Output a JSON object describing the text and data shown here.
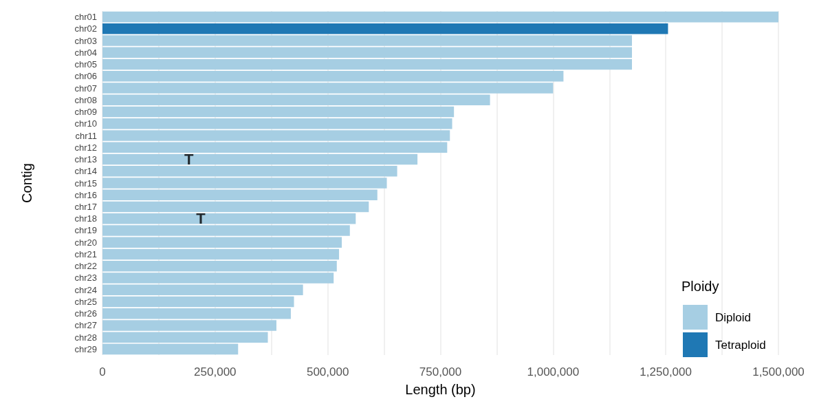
{
  "chart_data": {
    "type": "bar",
    "orientation": "horizontal",
    "stacked": true,
    "xlabel": "Length (bp)",
    "ylabel": "Contig",
    "legend_title": "Ploidy",
    "legend": "bottom right",
    "grid": "x",
    "categories": [
      "chr01",
      "chr02",
      "chr03",
      "chr04",
      "chr05",
      "chr06",
      "chr07",
      "chr08",
      "chr09",
      "chr10",
      "chr11",
      "chr12",
      "chr13",
      "chr14",
      "chr15",
      "chr16",
      "chr17",
      "chr18",
      "chr19",
      "chr20",
      "chr21",
      "chr22",
      "chr23",
      "chr24",
      "chr25",
      "chr26",
      "chr27",
      "chr28",
      "chr29"
    ],
    "xlim": [
      0,
      1500000
    ],
    "xticks": [
      0,
      {
        "value": 125000,
        "label": null
      },
      {
        "value": 250000,
        "label": "250,000"
      },
      {
        "value": 375000,
        "label": null
      },
      {
        "value": 500000,
        "label": "500,000"
      },
      {
        "value": 625000,
        "label": null
      },
      {
        "value": 750000,
        "label": "750,000"
      },
      {
        "value": 875000,
        "label": null
      },
      {
        "value": 1000000,
        "label": "1,000,000"
      },
      {
        "value": 1125000,
        "label": null
      },
      {
        "value": 1250000,
        "label": "1,250,000"
      },
      {
        "value": 1375000,
        "label": null
      },
      {
        "value": 1500000,
        "label": "1,500,000"
      }
    ],
    "series": [
      {
        "name": "Diploid",
        "color": "#a6cee3",
        "values": [
          1500000,
          null,
          1175000,
          1175000,
          1175000,
          1023000,
          1000000,
          860000,
          780000,
          776000,
          771000,
          765000,
          699000,
          654000,
          631000,
          610000,
          591000,
          562000,
          549000,
          531000,
          525000,
          520000,
          513000,
          445000,
          425000,
          418000,
          386000,
          367000,
          301000
        ]
      },
      {
        "name": "Tetraploid",
        "color": "#1f78b4",
        "values": [
          null,
          1255000,
          null,
          null,
          null,
          null,
          null,
          null,
          null,
          null,
          null,
          null,
          null,
          null,
          null,
          null,
          null,
          null,
          null,
          null,
          null,
          null,
          null,
          null,
          null,
          null,
          null,
          null,
          null
        ]
      }
    ],
    "annotations": [
      {
        "text": "T",
        "x": 192000,
        "y": "chr13"
      },
      {
        "text": "T",
        "x": 218000,
        "y": "chr18"
      }
    ]
  }
}
